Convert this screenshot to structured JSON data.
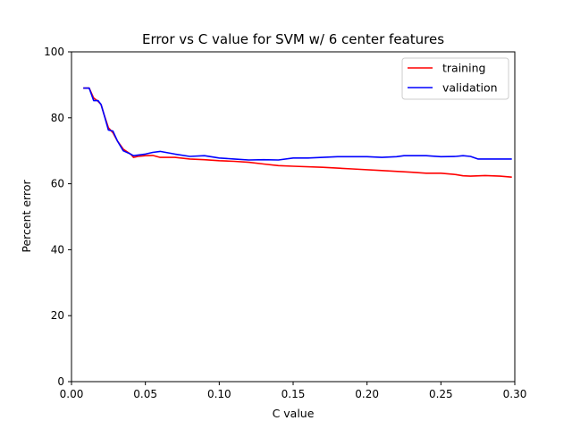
{
  "chart_data": {
    "type": "line",
    "title": "Error vs C value for SVM w/ 6 center features",
    "xlabel": "C value",
    "ylabel": "Percent error",
    "xlim": [
      0.0,
      0.3
    ],
    "ylim": [
      0,
      100
    ],
    "x_ticks": [
      "0.00",
      "0.05",
      "0.10",
      "0.15",
      "0.20",
      "0.25",
      "0.30"
    ],
    "y_ticks": [
      "0",
      "20",
      "40",
      "60",
      "80",
      "100"
    ],
    "grid": false,
    "legend_position": "top-right",
    "series": [
      {
        "name": "training",
        "color": "#ff0000",
        "points": [
          [
            0.008,
            89
          ],
          [
            0.012,
            89
          ],
          [
            0.015,
            86
          ],
          [
            0.018,
            85
          ],
          [
            0.02,
            84
          ],
          [
            0.022,
            81
          ],
          [
            0.025,
            77
          ],
          [
            0.028,
            75.5
          ],
          [
            0.031,
            73
          ],
          [
            0.035,
            70.5
          ],
          [
            0.04,
            69
          ],
          [
            0.042,
            68
          ],
          [
            0.045,
            68.3
          ],
          [
            0.05,
            68.5
          ],
          [
            0.055,
            68.6
          ],
          [
            0.06,
            68
          ],
          [
            0.07,
            68
          ],
          [
            0.08,
            67.5
          ],
          [
            0.09,
            67.3
          ],
          [
            0.1,
            67
          ],
          [
            0.11,
            66.8
          ],
          [
            0.12,
            66.5
          ],
          [
            0.13,
            66
          ],
          [
            0.14,
            65.5
          ],
          [
            0.15,
            65.3
          ],
          [
            0.17,
            65
          ],
          [
            0.19,
            64.5
          ],
          [
            0.21,
            64
          ],
          [
            0.23,
            63.5
          ],
          [
            0.24,
            63.2
          ],
          [
            0.25,
            63.2
          ],
          [
            0.26,
            62.8
          ],
          [
            0.265,
            62.4
          ],
          [
            0.27,
            62.3
          ],
          [
            0.28,
            62.5
          ],
          [
            0.29,
            62.3
          ],
          [
            0.298,
            62
          ]
        ]
      },
      {
        "name": "validation",
        "color": "#0000ff",
        "points": [
          [
            0.008,
            89
          ],
          [
            0.012,
            89
          ],
          [
            0.015,
            85.2
          ],
          [
            0.018,
            85.2
          ],
          [
            0.02,
            84
          ],
          [
            0.022,
            81
          ],
          [
            0.025,
            76.3
          ],
          [
            0.028,
            76
          ],
          [
            0.031,
            73
          ],
          [
            0.035,
            70
          ],
          [
            0.04,
            69
          ],
          [
            0.042,
            68.5
          ],
          [
            0.05,
            69
          ],
          [
            0.055,
            69.5
          ],
          [
            0.06,
            69.8
          ],
          [
            0.07,
            69
          ],
          [
            0.08,
            68.3
          ],
          [
            0.09,
            68.5
          ],
          [
            0.1,
            67.8
          ],
          [
            0.11,
            67.5
          ],
          [
            0.12,
            67.2
          ],
          [
            0.13,
            67.3
          ],
          [
            0.14,
            67.2
          ],
          [
            0.15,
            67.8
          ],
          [
            0.16,
            67.8
          ],
          [
            0.17,
            68
          ],
          [
            0.18,
            68.2
          ],
          [
            0.19,
            68.2
          ],
          [
            0.2,
            68.2
          ],
          [
            0.21,
            68
          ],
          [
            0.22,
            68.2
          ],
          [
            0.225,
            68.5
          ],
          [
            0.23,
            68.5
          ],
          [
            0.24,
            68.5
          ],
          [
            0.25,
            68.2
          ],
          [
            0.26,
            68.3
          ],
          [
            0.265,
            68.5
          ],
          [
            0.27,
            68.3
          ],
          [
            0.275,
            67.5
          ],
          [
            0.28,
            67.5
          ],
          [
            0.29,
            67.5
          ],
          [
            0.298,
            67.5
          ]
        ]
      }
    ]
  }
}
